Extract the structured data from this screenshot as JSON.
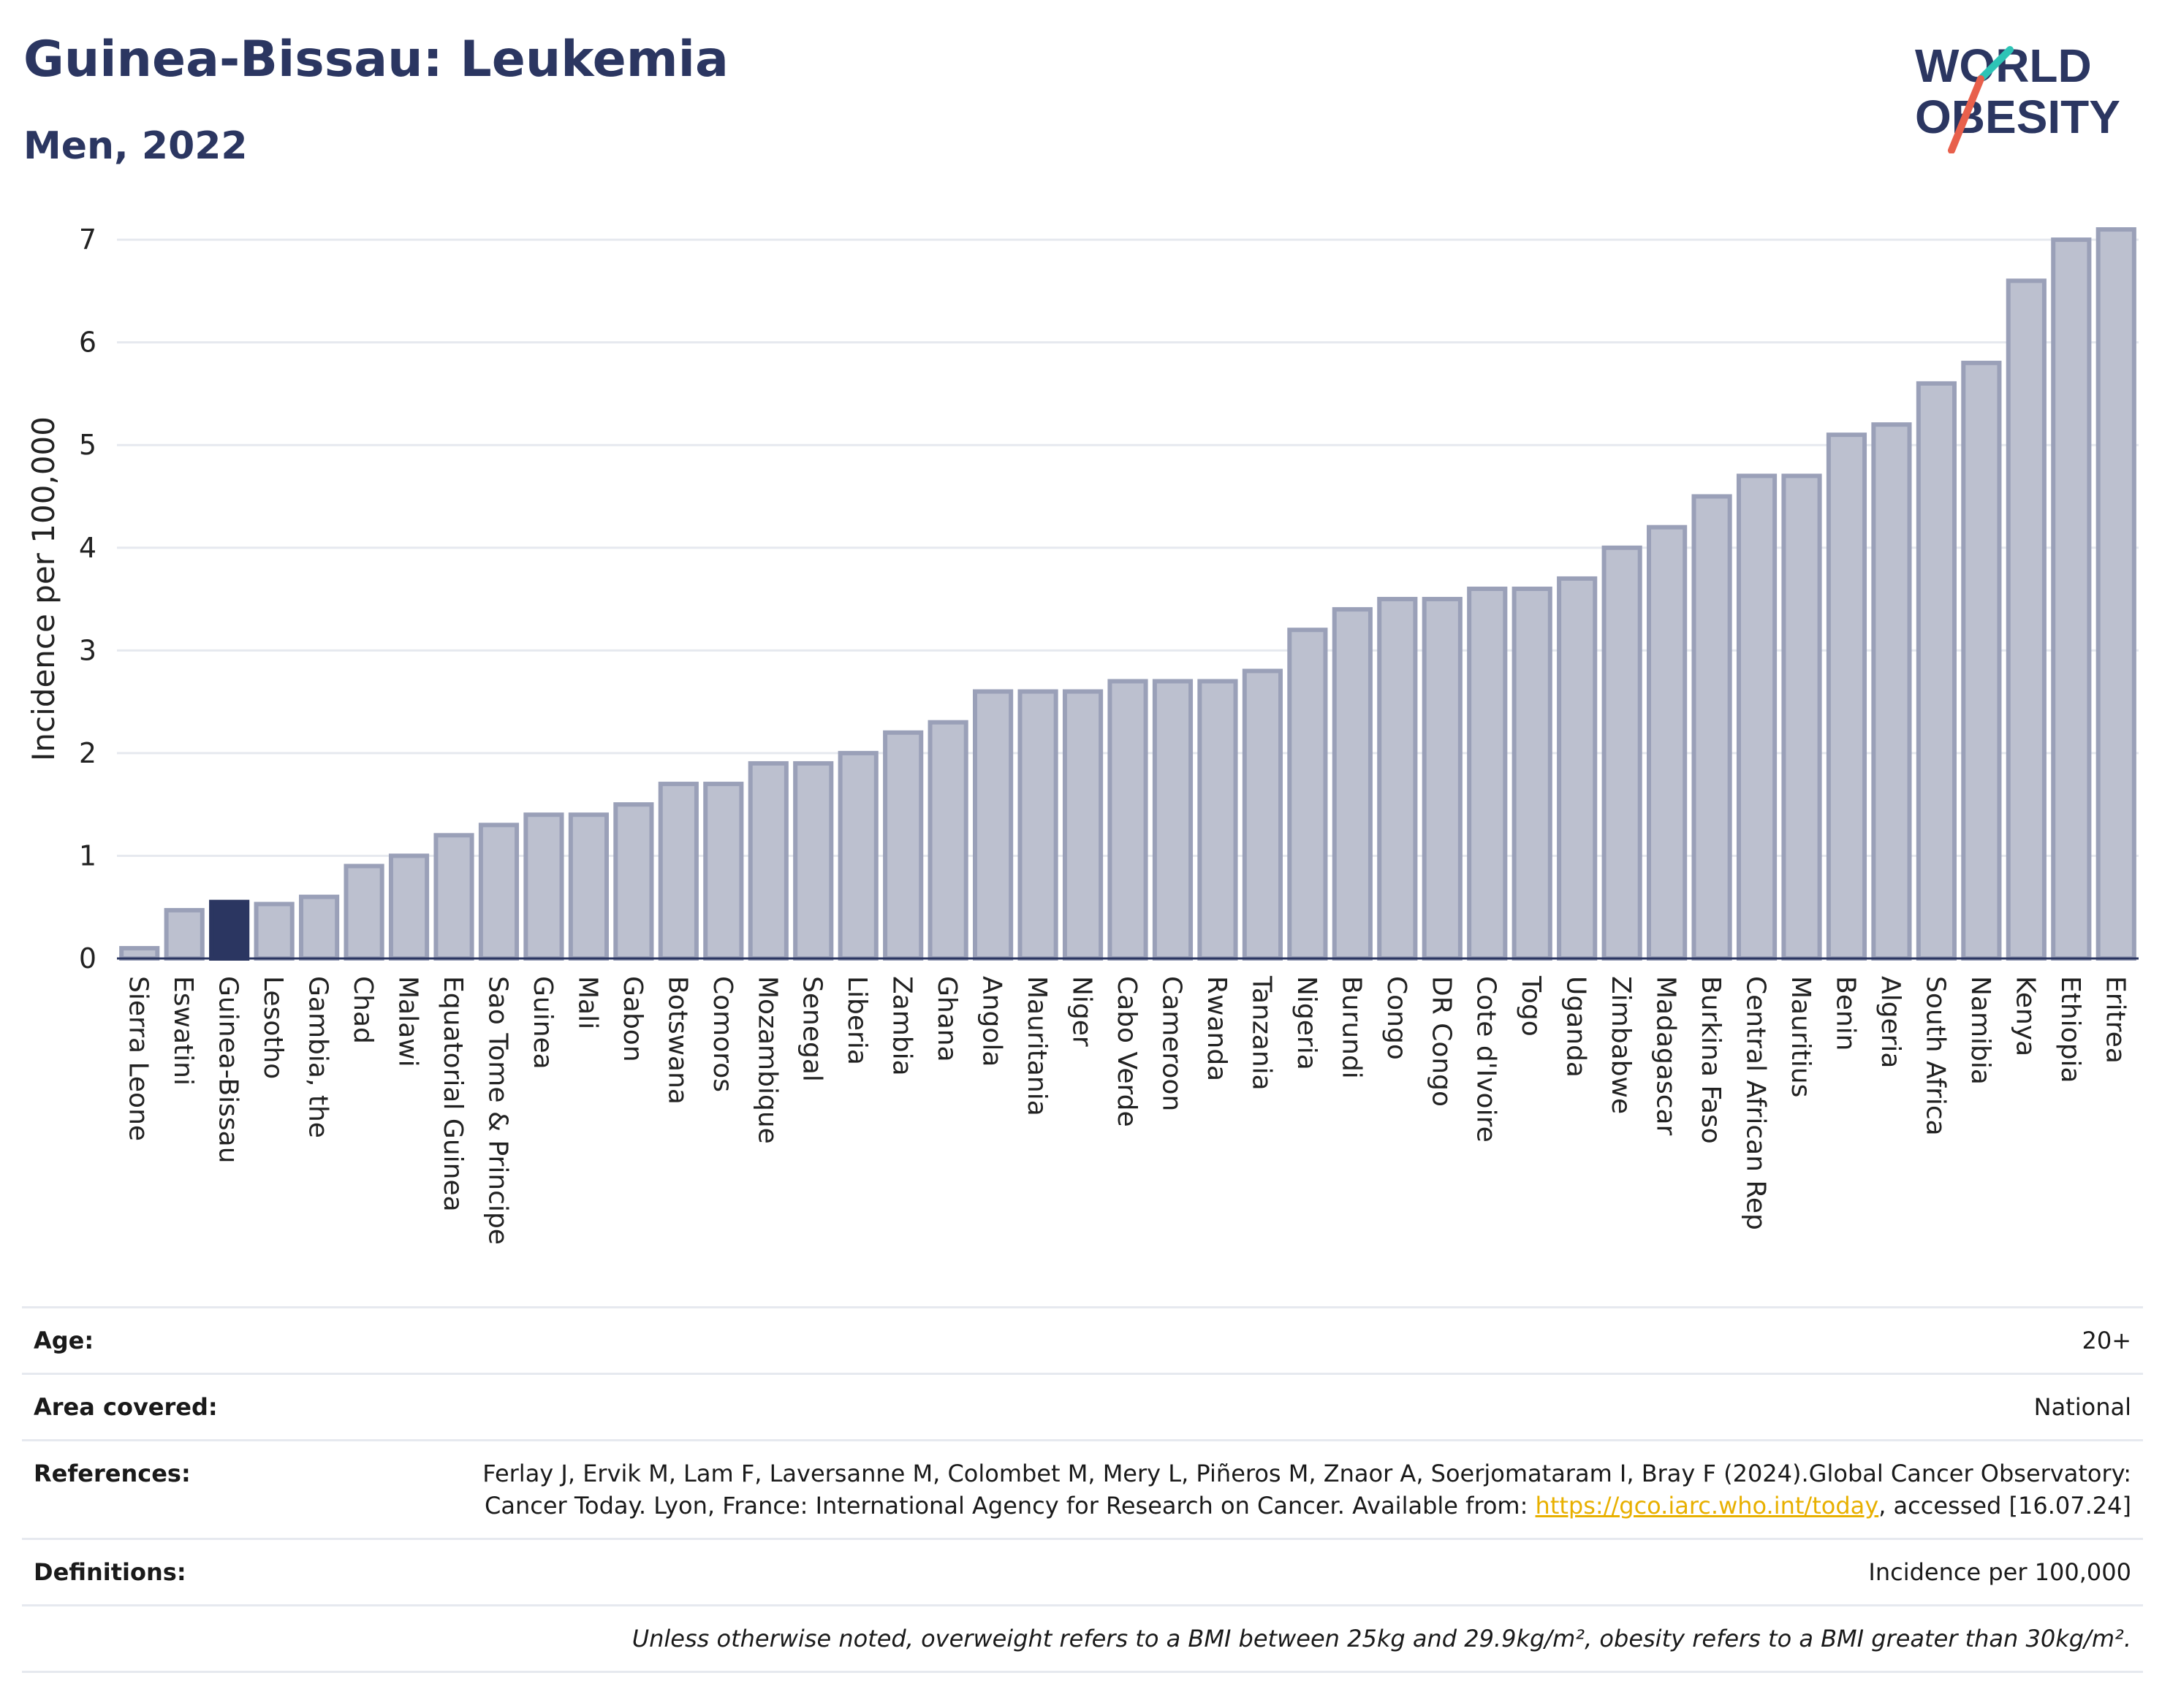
{
  "header": {
    "title": "Guinea-Bissau: Leukemia",
    "subtitle": "Men, 2022"
  },
  "logo": {
    "line1": "WORLD",
    "line2": "OBESITY",
    "color": "#2b3661",
    "slash_colors": [
      "#2ec4b6",
      "#e8604c"
    ]
  },
  "colors": {
    "bar": "#bcc0cf",
    "bar_stroke": "#9aa0b8",
    "highlight": "#2b3661",
    "grid": "#e6e9ef"
  },
  "chart_data": {
    "type": "bar",
    "title": "Guinea-Bissau: Leukemia",
    "subtitle": "Men, 2022",
    "ylabel": "Incidence per 100,000",
    "xlabel": "",
    "ylim": [
      0,
      7.2
    ],
    "yticks": [
      0,
      1,
      2,
      3,
      4,
      5,
      6,
      7
    ],
    "grid": true,
    "highlight": "Guinea-Bissau",
    "categories": [
      "Sierra Leone",
      "Eswatini",
      "Guinea-Bissau",
      "Lesotho",
      "Gambia, the",
      "Chad",
      "Malawi",
      "Equatorial Guinea",
      "Sao Tome & Principe",
      "Guinea",
      "Mali",
      "Gabon",
      "Botswana",
      "Comoros",
      "Mozambique",
      "Senegal",
      "Liberia",
      "Zambia",
      "Ghana",
      "Angola",
      "Mauritania",
      "Niger",
      "Cabo Verde",
      "Cameroon",
      "Rwanda",
      "Tanzania",
      "Nigeria",
      "Burundi",
      "Congo",
      "DR Congo",
      "Cote d'Ivoire",
      "Togo",
      "Uganda",
      "Zimbabwe",
      "Madagascar",
      "Burkina Faso",
      "Central African Rep",
      "Mauritius",
      "Benin",
      "Algeria",
      "South Africa",
      "Namibia",
      "Kenya",
      "Ethiopia",
      "Eritrea"
    ],
    "values": [
      0.1,
      0.47,
      0.55,
      0.53,
      0.6,
      0.9,
      1.0,
      1.2,
      1.3,
      1.4,
      1.4,
      1.5,
      1.7,
      1.7,
      1.9,
      1.9,
      2.0,
      2.2,
      2.3,
      2.6,
      2.6,
      2.6,
      2.7,
      2.7,
      2.7,
      2.8,
      3.2,
      3.4,
      3.5,
      3.5,
      3.6,
      3.6,
      3.7,
      4.0,
      4.2,
      4.5,
      4.7,
      4.7,
      5.1,
      5.2,
      5.6,
      5.8,
      6.6,
      7.0,
      7.1
    ]
  },
  "info": {
    "age_label": "Age:",
    "age_value": "20+",
    "area_label": "Area covered:",
    "area_value": "National",
    "references_label": "References:",
    "references_text": "Ferlay J, Ervik M, Lam F, Laversanne M, Colombet M, Mery L, Piñeros M, Znaor A, Soerjomataram I, Bray F (2024).Global Cancer Observatory: Cancer Today. Lyon, France: International Agency for Research on Cancer. Available from:",
    "references_link": "https://gco.iarc.who.int/today",
    "references_suffix": ", accessed [16.07.24]",
    "definitions_label": "Definitions:",
    "definitions_value": "Incidence per 100,000",
    "note": "Unless otherwise noted, overweight refers to a BMI between 25kg and 29.9kg/m², obesity refers to a BMI greater than 30kg/m²."
  }
}
